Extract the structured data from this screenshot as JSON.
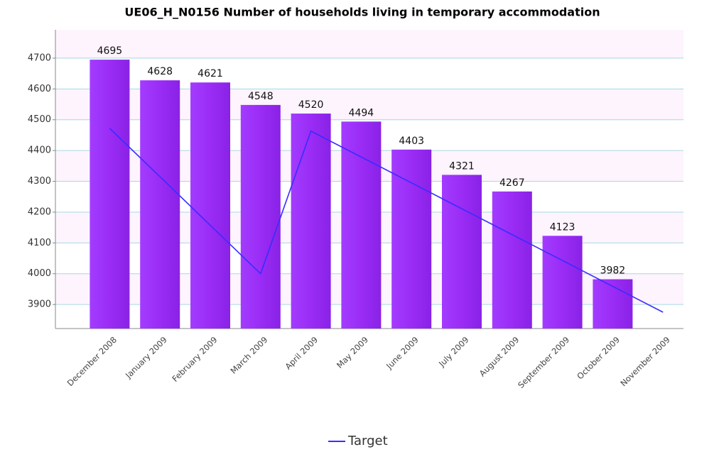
{
  "chart_data": {
    "type": "bar",
    "title": "UE06_H_N0156 Number of households living in temporary accommodation",
    "categories": [
      "December 2008",
      "January 2009",
      "February 2009",
      "March 2009",
      "April 2009",
      "May 2009",
      "June 2009",
      "July 2009",
      "August 2009",
      "September 2009",
      "October 2009",
      "November 2009"
    ],
    "series": [
      {
        "type": "bar",
        "color": "#9a2cf5",
        "values": [
          4695,
          4628,
          4621,
          4548,
          4520,
          4494,
          4403,
          4321,
          4267,
          4123,
          3982,
          null
        ]
      },
      {
        "type": "line",
        "name": "Target",
        "color": "#3a2cff",
        "values": [
          4472,
          4315,
          4157,
          4000,
          4463,
          4379,
          4295,
          4211,
          4127,
          4043,
          3959,
          3875
        ]
      }
    ],
    "ylim": [
      3822,
      4792
    ],
    "yticks": [
      3900,
      4000,
      4100,
      4200,
      4300,
      4400,
      4500,
      4600,
      4700
    ],
    "grid": true,
    "legend": "bottom"
  }
}
